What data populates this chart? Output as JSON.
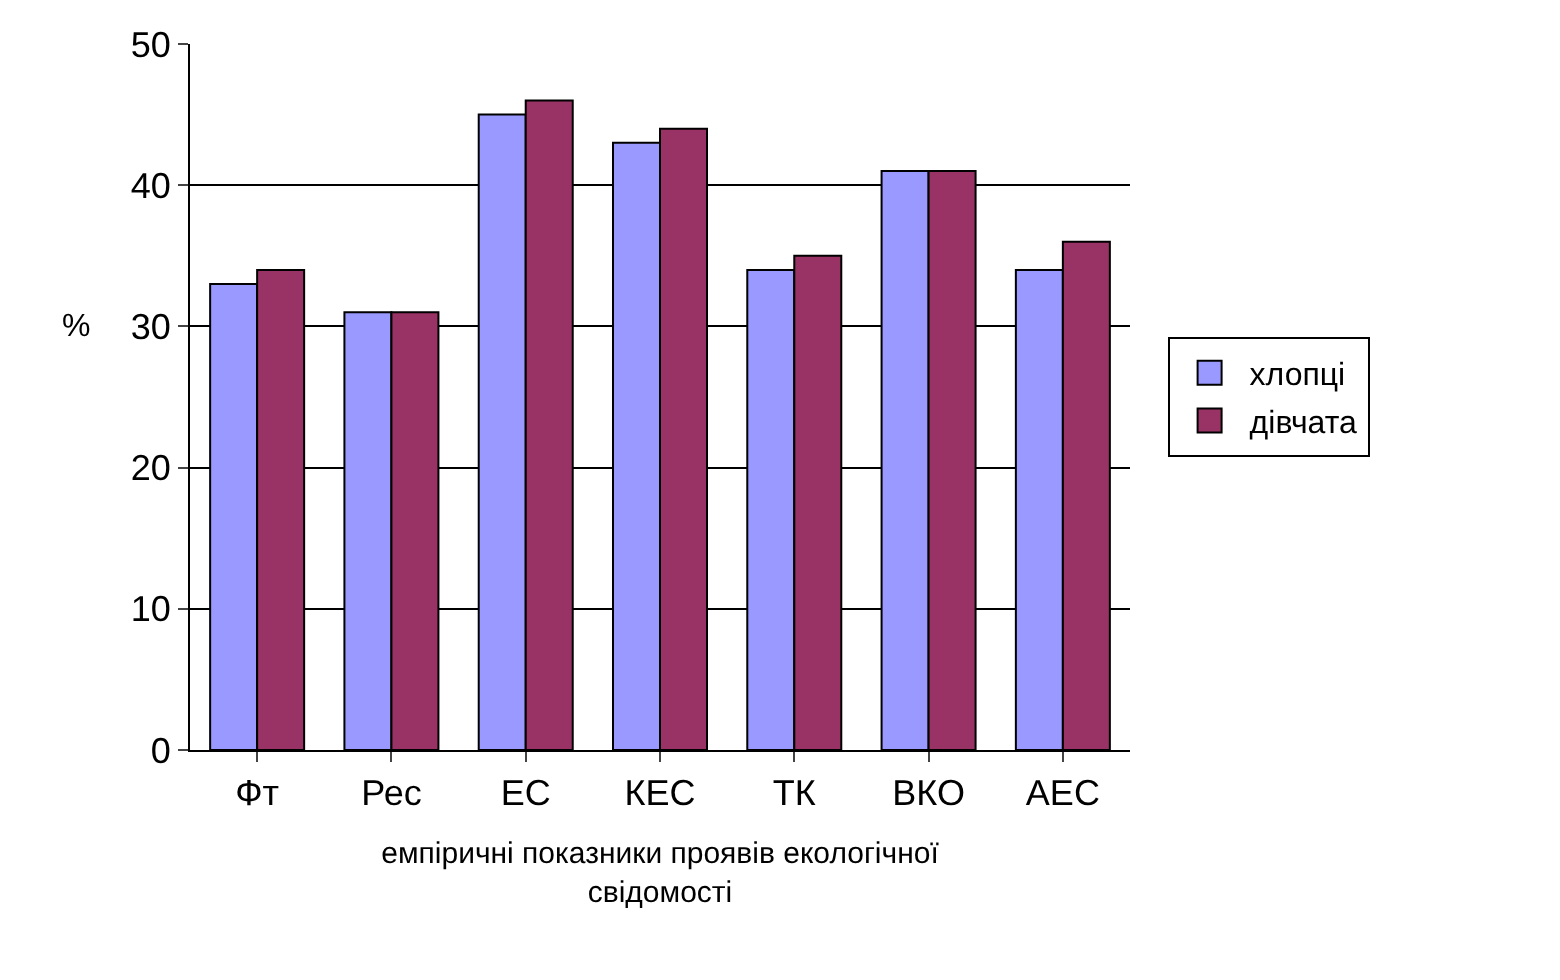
{
  "chart_data": {
    "type": "bar",
    "xlabel": "емпіричні показники проявів екологічної свідомості",
    "ylabel": "%",
    "categories": [
      "Фт",
      "Рес",
      "ЕС",
      "КЕС",
      "ТК",
      "ВКО",
      "АЕС"
    ],
    "series": [
      {
        "name": "хлопці",
        "color": "#9999ff",
        "values": [
          33,
          31,
          45,
          43,
          34,
          41,
          34
        ]
      },
      {
        "name": "дівчата",
        "color": "#993366",
        "values": [
          34,
          31,
          46,
          44,
          35,
          41,
          36
        ]
      }
    ],
    "ylim": [
      0,
      50
    ],
    "yticks": [
      0,
      10,
      20,
      30,
      40,
      50
    ],
    "grid": "y",
    "legend": "right"
  }
}
